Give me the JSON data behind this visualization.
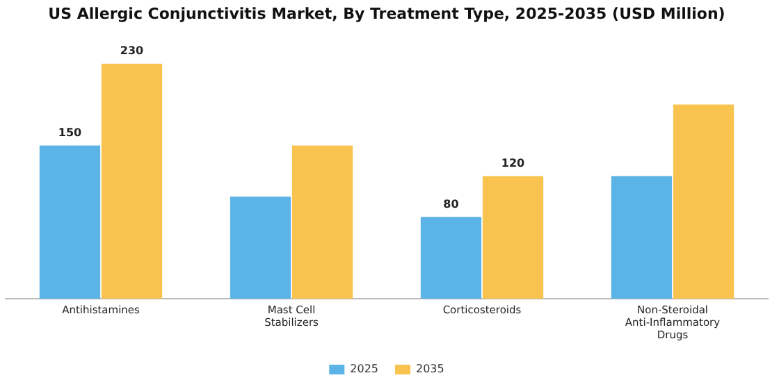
{
  "chart_data": {
    "type": "bar",
    "title": "US Allergic Conjunctivitis Market, By Treatment Type, 2025-2035 (USD Million)",
    "categories": [
      "Antihistamines",
      "Mast Cell Stabilizers",
      "Corticosteroids",
      "Non-Steroidal Anti-Inflammatory Drugs"
    ],
    "series": [
      {
        "name": "2025",
        "color": "#5bb4e5",
        "values": [
          150,
          100,
          80,
          120
        ],
        "value_labels": [
          "150",
          null,
          "80",
          null
        ]
      },
      {
        "name": "2035",
        "color": "#f8c44f",
        "values": [
          230,
          150,
          120,
          190
        ],
        "value_labels": [
          "230",
          null,
          "120",
          null
        ]
      }
    ],
    "legend": "bottom",
    "grid": false
  }
}
